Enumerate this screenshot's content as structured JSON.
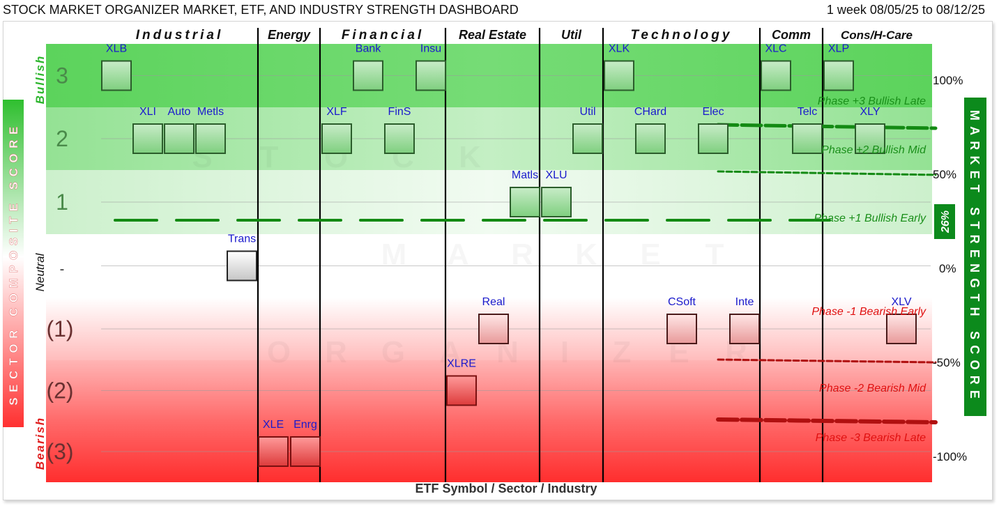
{
  "header": {
    "title": "STOCK MARKET ORGANIZER MARKET, ETF, AND INDUSTRY STRENGTH DASHBOARD",
    "date_range": "1 week 08/05/25 to 08/12/25"
  },
  "chart_data": {
    "type": "scatter",
    "xlabel": "ETF Symbol / Sector / Industry",
    "left_axis_label": "SECTOR COMPOSITE SCORE",
    "right_axis_label": "MARKET STRENGTH SCORE",
    "market_strength_value": "26%",
    "watermark": "STOCK MARKET ORGANIZER",
    "sectors": [
      {
        "name": "Industrial"
      },
      {
        "name": "Energy"
      },
      {
        "name": "Financial"
      },
      {
        "name": "Real Estate"
      },
      {
        "name": "Util"
      },
      {
        "name": "Technology"
      },
      {
        "name": "Comm"
      },
      {
        "name": "Cons/H-Care"
      }
    ],
    "band_labels": [
      {
        "text": "3",
        "score": 3
      },
      {
        "text": "2",
        "score": 2
      },
      {
        "text": "1",
        "score": 1
      },
      {
        "text": "-",
        "score": 0
      },
      {
        "text": "(1)",
        "score": -1
      },
      {
        "text": "(2)",
        "score": -2
      },
      {
        "text": "(3)",
        "score": -3
      }
    ],
    "zone_labels": {
      "bullish": "Bullish",
      "neutral": "Neutral",
      "bearish": "Bearish"
    },
    "right_ticks": [
      {
        "label": "100%",
        "value": 100
      },
      {
        "label": "50%",
        "value": 50
      },
      {
        "label": "0%",
        "value": 0
      },
      {
        "label": "-50%",
        "value": -50
      },
      {
        "label": "-100%",
        "value": -100
      }
    ],
    "phases": [
      {
        "label": "Phase +3 Bullish Late",
        "level": 75
      },
      {
        "label": "Phase +2 Bullish Mid",
        "level": 50
      },
      {
        "label": "Phase +1 Bullish Early",
        "level": 25
      },
      {
        "label": "Phase -1 Bearish Early",
        "level": -25
      },
      {
        "label": "Phase -2 Bearish Mid",
        "level": -50
      },
      {
        "label": "Phase -3 Bearish Late",
        "level": -75
      }
    ],
    "points": [
      {
        "symbol": "XLB",
        "score": 3
      },
      {
        "symbol": "XLI",
        "score": 2
      },
      {
        "symbol": "Auto",
        "score": 2
      },
      {
        "symbol": "Metls",
        "score": 2
      },
      {
        "symbol": "Trans",
        "score": 0
      },
      {
        "symbol": "XLE",
        "score": -3
      },
      {
        "symbol": "Enrg",
        "score": -3
      },
      {
        "symbol": "XLF",
        "score": 2
      },
      {
        "symbol": "Bank",
        "score": 3
      },
      {
        "symbol": "FinS",
        "score": 2
      },
      {
        "symbol": "Insu",
        "score": 3
      },
      {
        "symbol": "XLRE",
        "score": -2
      },
      {
        "symbol": "Real",
        "score": -1
      },
      {
        "symbol": "Matls",
        "score": 1
      },
      {
        "symbol": "XLU",
        "score": 1
      },
      {
        "symbol": "Util",
        "score": 2
      },
      {
        "symbol": "XLK",
        "score": 3
      },
      {
        "symbol": "CHard",
        "score": 2
      },
      {
        "symbol": "CSoft",
        "score": -1
      },
      {
        "symbol": "Elec",
        "score": 2
      },
      {
        "symbol": "Inte",
        "score": -1
      },
      {
        "symbol": "XLC",
        "score": 3
      },
      {
        "symbol": "Telc",
        "score": 2
      },
      {
        "symbol": "XLP",
        "score": 3
      },
      {
        "symbol": "XLY",
        "score": 2
      },
      {
        "symbol": "XLV",
        "score": -1
      }
    ]
  }
}
